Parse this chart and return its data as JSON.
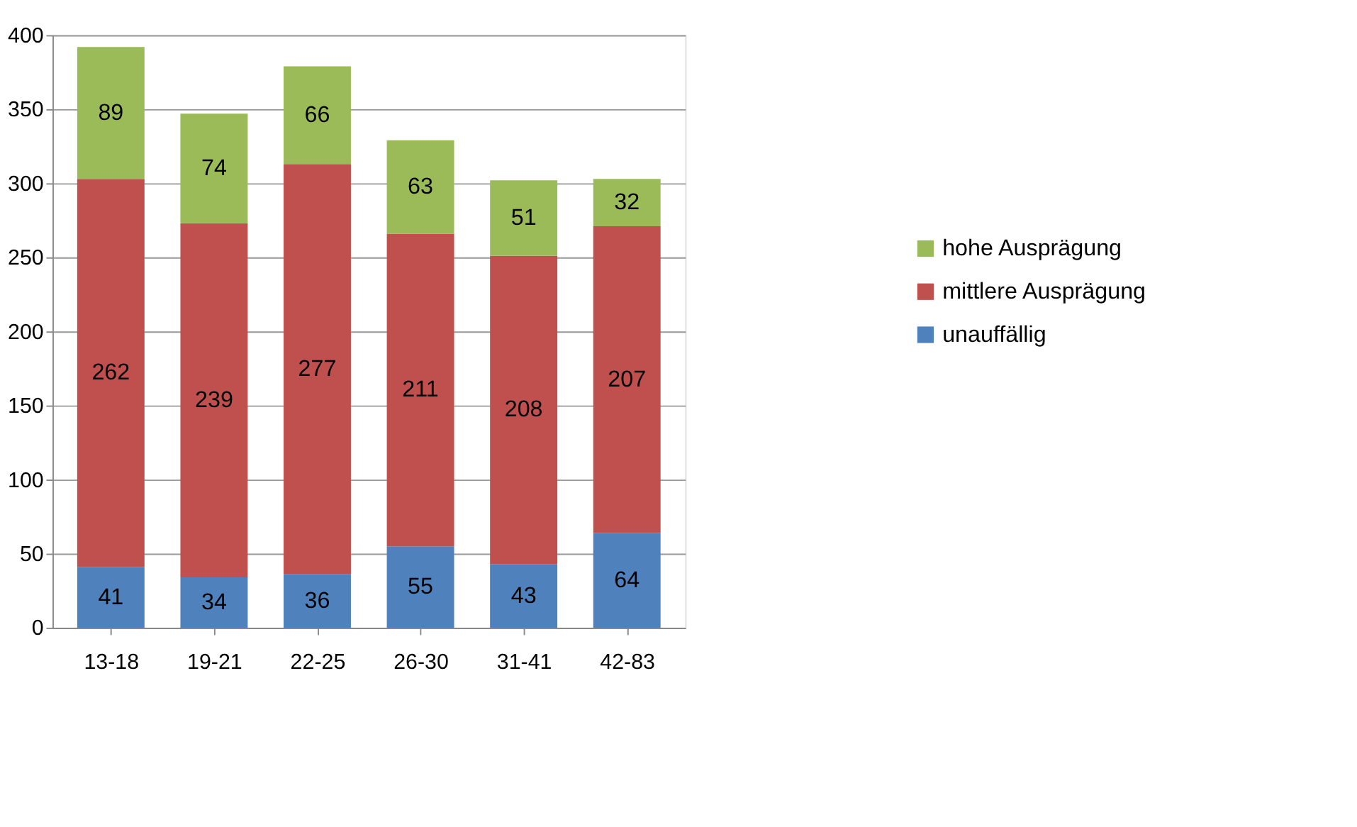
{
  "chart_data": {
    "type": "bar",
    "stacked": true,
    "categories": [
      "13-18",
      "19-21",
      "22-25",
      "26-30",
      "31-41",
      "42-83"
    ],
    "series": [
      {
        "name": "unauffällig",
        "color": "#4f81bd",
        "values": [
          41,
          34,
          36,
          55,
          43,
          64
        ]
      },
      {
        "name": "mittlere Ausprägung",
        "color": "#c0504d",
        "values": [
          262,
          239,
          277,
          211,
          208,
          207
        ]
      },
      {
        "name": "hohe Ausprägung",
        "color": "#9bbb59",
        "values": [
          89,
          74,
          66,
          63,
          51,
          32
        ]
      }
    ],
    "ylim": [
      0,
      400
    ],
    "yticks": [
      0,
      50,
      100,
      150,
      200,
      250,
      300,
      350,
      400
    ],
    "grid": "y",
    "legend": "right",
    "data_labels": true
  }
}
